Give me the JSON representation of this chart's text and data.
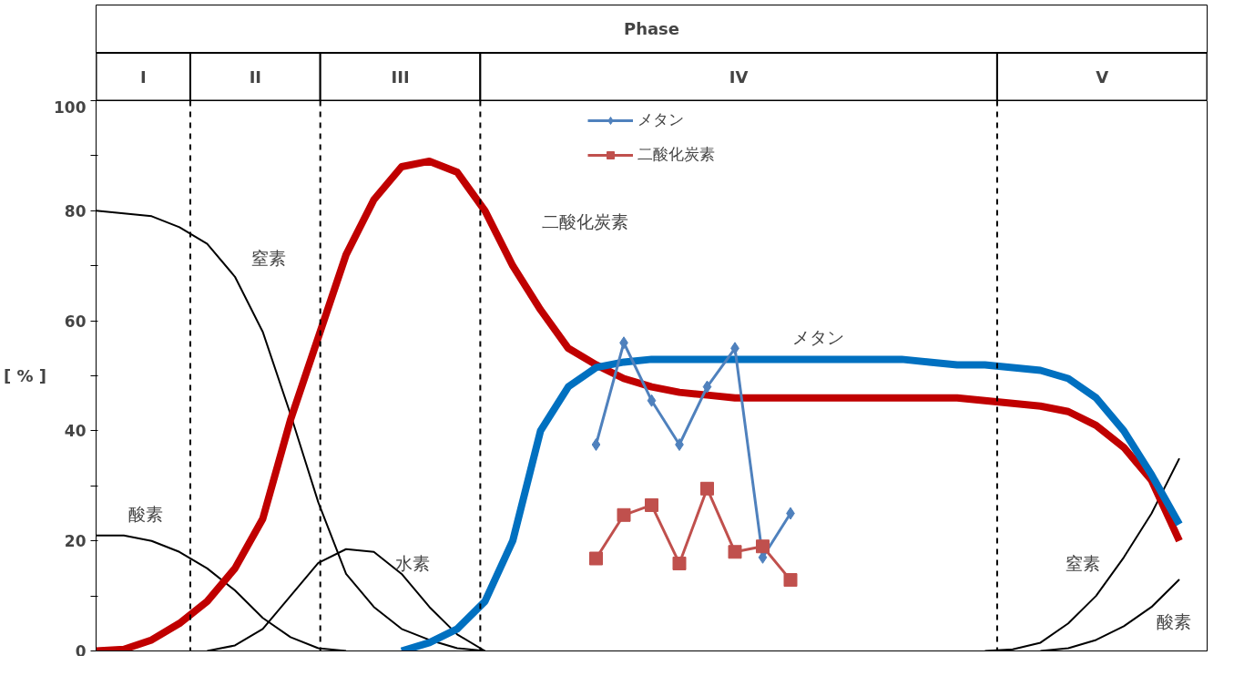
{
  "chart_data": {
    "type": "line",
    "xlabel": "Phase",
    "ylabel": "[ % ]",
    "categories": [
      null,
      null,
      null,
      null,
      null,
      null,
      null,
      null,
      null,
      null,
      null,
      null,
      null,
      null,
      null,
      null,
      null,
      null,
      null,
      null,
      null,
      null,
      null,
      null,
      null,
      null,
      null,
      null,
      null,
      null,
      null,
      null,
      null,
      null,
      null,
      null,
      null,
      null,
      null,
      null,
      null
    ],
    "ylim": [
      0,
      100
    ],
    "yticks": [
      0,
      {
        "value": 10,
        "label": null
      },
      20,
      {
        "value": 30,
        "label": null
      },
      40,
      {
        "value": 50,
        "label": null
      },
      60,
      {
        "value": 70,
        "label": null
      },
      80,
      {
        "value": 90,
        "label": null
      },
      100
    ],
    "tick_labels": "y",
    "grid": false,
    "legend": "top",
    "line_style": "solid",
    "series": [
      {
        "color": "#000000",
        "values": [
          80,
          79.5,
          79,
          77,
          74,
          68,
          58,
          43,
          27,
          14,
          8,
          4,
          2,
          0.5,
          0,
          null,
          null,
          null,
          null,
          null,
          null,
          null,
          null,
          null,
          null,
          null,
          null,
          null,
          null,
          null,
          null,
          null,
          null,
          null,
          null,
          null,
          null,
          null,
          null,
          null,
          null
        ]
      },
      {
        "color": "#000000",
        "values": [
          21,
          21,
          20,
          18,
          15,
          11,
          6,
          2.5,
          0.5,
          0,
          null,
          null,
          null,
          null,
          null,
          null,
          null,
          null,
          null,
          null,
          null,
          null,
          null,
          null,
          null,
          null,
          null,
          null,
          null,
          null,
          null,
          null,
          null,
          null,
          null,
          null,
          null,
          null,
          null,
          null,
          null
        ]
      },
      {
        "color": "#000000",
        "values": [
          null,
          null,
          null,
          null,
          0,
          1,
          4,
          10,
          16,
          18.5,
          18,
          14,
          8,
          3,
          0,
          null,
          null,
          null,
          null,
          null,
          null,
          null,
          null,
          null,
          null,
          null,
          null,
          null,
          null,
          null,
          null,
          null,
          null,
          null,
          null,
          null,
          null,
          null,
          null,
          null,
          null
        ]
      },
      {
        "color": "#000000",
        "values": [
          null,
          null,
          null,
          null,
          null,
          null,
          null,
          null,
          null,
          null,
          null,
          null,
          null,
          null,
          null,
          null,
          null,
          null,
          null,
          null,
          null,
          null,
          null,
          null,
          null,
          null,
          null,
          null,
          null,
          null,
          null,
          null,
          0,
          0.3,
          1.5,
          5,
          10,
          17,
          25,
          35,
          null
        ]
      },
      {
        "color": "#000000",
        "values": [
          null,
          null,
          null,
          null,
          null,
          null,
          null,
          null,
          null,
          null,
          null,
          null,
          null,
          null,
          null,
          null,
          null,
          null,
          null,
          null,
          null,
          null,
          null,
          null,
          null,
          null,
          null,
          null,
          null,
          null,
          null,
          null,
          null,
          null,
          0,
          0.5,
          2,
          4.5,
          8,
          13,
          null
        ]
      },
      {
        "color": "#c00000",
        "values": [
          0,
          0.3,
          2,
          5,
          9,
          15,
          24,
          42,
          57,
          72,
          82,
          88,
          89,
          87,
          80,
          70,
          62,
          55,
          52,
          49.5,
          48,
          47,
          46.5,
          46,
          46,
          46,
          46,
          46,
          46,
          46,
          46,
          46,
          45.5,
          45,
          44.5,
          43.5,
          41,
          37,
          31,
          20,
          null
        ]
      },
      {
        "color": "#0070c0",
        "values": [
          null,
          null,
          null,
          null,
          null,
          null,
          null,
          null,
          null,
          null,
          null,
          0,
          1.5,
          4,
          9,
          20,
          40,
          48,
          51.5,
          52.5,
          53,
          53,
          53,
          53,
          53,
          53,
          53,
          53,
          53,
          53,
          52.5,
          52,
          52,
          51.5,
          51,
          49.5,
          46,
          40,
          32,
          23,
          null
        ]
      },
      {
        "name": "メタン",
        "color": "#4f81bd",
        "marker": "diamond",
        "values": [
          null,
          null,
          null,
          null,
          null,
          null,
          null,
          null,
          null,
          null,
          null,
          null,
          null,
          null,
          null,
          null,
          null,
          null,
          37.5,
          56,
          45.5,
          37.5,
          48,
          55,
          17,
          25,
          null,
          null,
          null,
          null,
          null,
          null,
          null,
          null,
          null,
          null,
          null,
          null,
          null,
          null,
          null
        ]
      },
      {
        "name": "二酸化炭素",
        "color": "#c0504d",
        "marker": "square",
        "values": [
          null,
          null,
          null,
          null,
          null,
          null,
          null,
          null,
          null,
          null,
          null,
          null,
          null,
          null,
          null,
          null,
          null,
          null,
          16.8,
          24.7,
          26.5,
          15.9,
          29.5,
          18,
          19,
          12.9,
          null,
          null,
          null,
          null,
          null,
          null,
          null,
          null,
          null,
          null,
          null,
          null,
          null,
          null,
          null
        ]
      }
    ],
    "annotations": [
      "I",
      "II",
      "III",
      "IV",
      "V",
      "窒素",
      "酸素",
      "水素",
      "二酸化炭素",
      "メタン",
      "窒素",
      "酸素"
    ]
  }
}
